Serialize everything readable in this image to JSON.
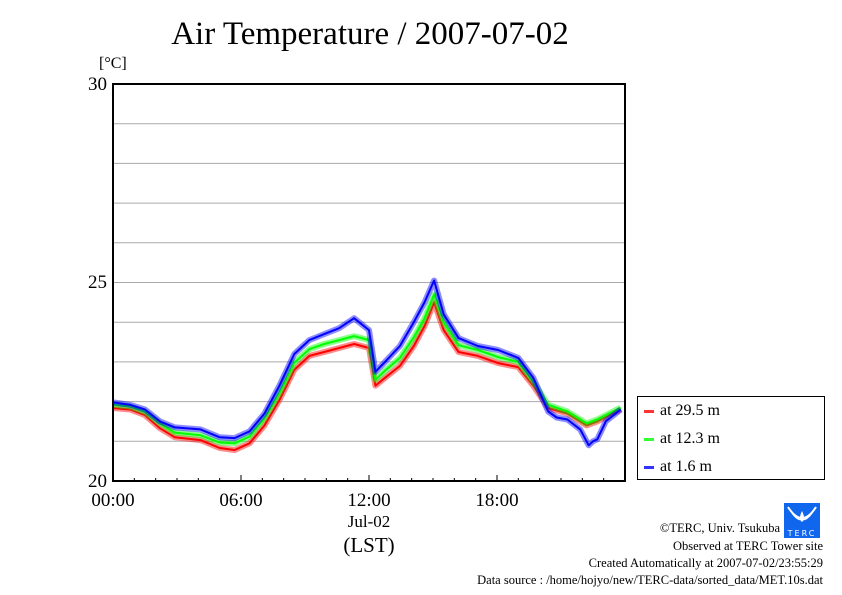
{
  "chart_data": {
    "type": "line",
    "title": "Air Temperature / 2007-07-02",
    "ylabel": "[°C]",
    "xlabel": "(LST)",
    "x_date_label": "Jul-02",
    "ylim": [
      20,
      30
    ],
    "xlim_hours": [
      0,
      24
    ],
    "y_ticks": [
      "20",
      "25",
      "30"
    ],
    "y_ticks_values": [
      20,
      25,
      30
    ],
    "y_grid_values": [
      21,
      22,
      23,
      24,
      25,
      26,
      27,
      28,
      29
    ],
    "x_ticks": [
      "00:00",
      "06:00",
      "12:00",
      "18:00"
    ],
    "x_ticks_hours": [
      0,
      6,
      12,
      18
    ],
    "grid": true,
    "legend_placement": "right-bottom outside",
    "series": [
      {
        "name": "at 29.5 m",
        "color": "#ff0000",
        "x": [
          0,
          0.8,
          1.5,
          2.2,
          2.9,
          4.1,
          5.0,
          5.7,
          6.4,
          7.1,
          7.8,
          8.5,
          9.2,
          9.9,
          10.6,
          11.3,
          12.0,
          12.3,
          12.75,
          13.45,
          14.1,
          14.6,
          15.05,
          15.5,
          16.2,
          17.1,
          18.05,
          19.0,
          19.7,
          20.4,
          21.3,
          22.2,
          22.7,
          23.8
        ],
        "y": [
          21.84,
          21.8,
          21.66,
          21.33,
          21.1,
          21.03,
          20.83,
          20.78,
          20.95,
          21.4,
          22.04,
          22.8,
          23.15,
          23.25,
          23.35,
          23.45,
          23.35,
          22.4,
          22.6,
          22.9,
          23.4,
          23.9,
          24.5,
          23.8,
          23.25,
          23.15,
          22.97,
          22.87,
          22.4,
          21.84,
          21.7,
          21.4,
          21.5,
          21.8
        ]
      },
      {
        "name": "at 12.3 m",
        "color": "#00ff00",
        "x": [
          0,
          0.8,
          1.5,
          2.2,
          2.9,
          4.1,
          5.0,
          5.7,
          6.4,
          7.1,
          7.8,
          8.5,
          9.2,
          9.9,
          10.6,
          11.3,
          12.0,
          12.3,
          12.75,
          13.45,
          14.1,
          14.6,
          15.05,
          15.5,
          16.2,
          17.1,
          18.05,
          19.0,
          19.7,
          20.4,
          21.3,
          22.2,
          22.7,
          23.8
        ],
        "y": [
          21.92,
          21.88,
          21.74,
          21.45,
          21.22,
          21.15,
          20.97,
          20.95,
          21.12,
          21.58,
          22.22,
          22.98,
          23.32,
          23.45,
          23.55,
          23.65,
          23.55,
          22.55,
          22.78,
          23.1,
          23.62,
          24.1,
          24.7,
          24.0,
          23.42,
          23.3,
          23.12,
          23.0,
          22.5,
          21.92,
          21.75,
          21.45,
          21.55,
          21.85
        ]
      },
      {
        "name": "at 1.6 m",
        "color": "#0000ff",
        "x": [
          0,
          0.8,
          1.5,
          2.2,
          2.9,
          4.1,
          5.0,
          5.7,
          6.4,
          7.1,
          7.8,
          8.5,
          9.2,
          9.9,
          10.6,
          11.3,
          12.0,
          12.3,
          12.75,
          13.45,
          14.1,
          14.6,
          15.05,
          15.5,
          16.2,
          17.1,
          18.05,
          19.0,
          19.7,
          20.4,
          20.8,
          21.3,
          21.9,
          22.3,
          22.5,
          22.7,
          23.1,
          23.8
        ],
        "y": [
          21.98,
          21.92,
          21.8,
          21.5,
          21.35,
          21.3,
          21.1,
          21.08,
          21.25,
          21.7,
          22.4,
          23.2,
          23.55,
          23.7,
          23.85,
          24.1,
          23.8,
          22.75,
          23.0,
          23.4,
          24.0,
          24.5,
          25.05,
          24.2,
          23.6,
          23.4,
          23.3,
          23.1,
          22.6,
          21.75,
          21.6,
          21.55,
          21.3,
          20.9,
          21.0,
          21.05,
          21.5,
          21.8
        ]
      }
    ]
  },
  "footer": {
    "copyright": "©TERC, Univ. Tsukuba",
    "observed": "Observed at TERC Tower site",
    "created": "Created Automatically at 2007-07-02/23:55:29",
    "source": "Data source : /home/hojyo/new/TERC-data/sorted_data/MET.10s.dat",
    "logo_text": "TERC"
  }
}
